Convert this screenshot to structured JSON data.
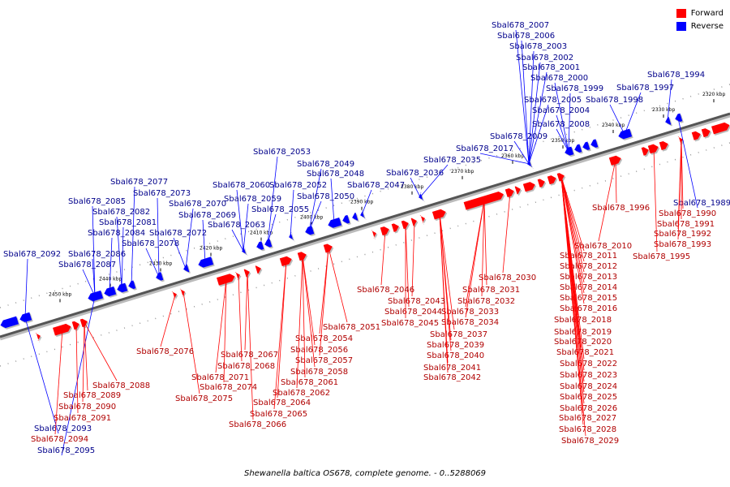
{
  "legend": {
    "forward_label": "Forward",
    "reverse_label": "Reverse",
    "forward_color": "#ff0000",
    "reverse_color": "#0000ff"
  },
  "caption": "Shewanella baltica OS678, complete genome. - 0..5288069",
  "axis_ticks": [
    "2320 kbp",
    "2330 kbp",
    "2340 kbp",
    "2350 kbp",
    "2360 kbp",
    "2370 kbp",
    "2380 kbp",
    "2390 kbp",
    "2400 kbp",
    "2410 kbp",
    "2420 kbp",
    "2430 kbp",
    "2440 kbp",
    "2450 kbp"
  ],
  "reverse_genes": [
    "Sbal678_2007",
    "Sbal678_2006",
    "Sbal678_2003",
    "Sbal678_2002",
    "Sbal678_2001",
    "Sbal678_2000",
    "Sbal678_1999",
    "Sbal678_2005",
    "Sbal678_2004",
    "Sbal678_2008",
    "Sbal678_2009",
    "Sbal678_1994",
    "Sbal678_1997",
    "Sbal678_1998",
    "Sbal678_1989",
    "Sbal678_2017",
    "Sbal678_2035",
    "Sbal678_2036",
    "Sbal678_2047",
    "Sbal678_2053",
    "Sbal678_2049",
    "Sbal678_2048",
    "Sbal678_2052",
    "Sbal678_2050",
    "Sbal678_2060",
    "Sbal678_2059",
    "Sbal678_2055",
    "Sbal678_2063",
    "Sbal678_2077",
    "Sbal678_2073",
    "Sbal678_2070",
    "Sbal678_2069",
    "Sbal678_2085",
    "Sbal678_2082",
    "Sbal678_2081",
    "Sbal678_2084",
    "Sbal678_2072",
    "Sbal678_2078",
    "Sbal678_2086",
    "Sbal678_2087",
    "Sbal678_2092",
    "Sbal678_2093",
    "Sbal678_2095"
  ],
  "forward_genes": [
    "Sbal678_1996",
    "Sbal678_1990",
    "Sbal678_1991",
    "Sbal678_1992",
    "Sbal678_1993",
    "Sbal678_1995",
    "Sbal678_2010",
    "Sbal678_2011",
    "Sbal678_2012",
    "Sbal678_2013",
    "Sbal678_2014",
    "Sbal678_2015",
    "Sbal678_2016",
    "Sbal678_2018",
    "Sbal678_2019",
    "Sbal678_2020",
    "Sbal678_2021",
    "Sbal678_2022",
    "Sbal678_2023",
    "Sbal678_2024",
    "Sbal678_2025",
    "Sbal678_2026",
    "Sbal678_2027",
    "Sbal678_2028",
    "Sbal678_2029",
    "Sbal678_2030",
    "Sbal678_2031",
    "Sbal678_2032",
    "Sbal678_2033",
    "Sbal678_2034",
    "Sbal678_2037",
    "Sbal678_2039",
    "Sbal678_2040",
    "Sbal678_2041",
    "Sbal678_2042",
    "Sbal678_2043",
    "Sbal678_2044",
    "Sbal678_2045",
    "Sbal678_2046",
    "Sbal678_2051",
    "Sbal678_2054",
    "Sbal678_2056",
    "Sbal678_2057",
    "Sbal678_2058",
    "Sbal678_2061",
    "Sbal678_2062",
    "Sbal678_2064",
    "Sbal678_2065",
    "Sbal678_2066",
    "Sbal678_2067",
    "Sbal678_2068",
    "Sbal678_2071",
    "Sbal678_2074",
    "Sbal678_2075",
    "Sbal678_2076",
    "Sbal678_2088",
    "Sbal678_2089",
    "Sbal678_2090",
    "Sbal678_2091",
    "Sbal678_2094"
  ]
}
